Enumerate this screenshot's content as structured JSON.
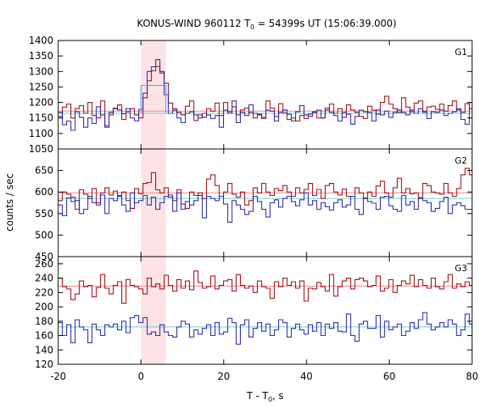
{
  "chart_data": {
    "type": "line",
    "title": "KONUS-WIND 960112 T",
    "title_sub": "0",
    "title_tail": " = 54399s UT (15:06:39.000)",
    "xlabel_main": "T - T",
    "xlabel_sub": "0",
    "xlabel_tail": ", s",
    "ylabel": "counts / sec",
    "xlim": [
      -20,
      80
    ],
    "bin_width": 1.024,
    "x_start": -20,
    "x_ticks": [
      -20,
      0,
      20,
      40,
      60,
      80
    ],
    "highlight_interval": [
      0,
      6
    ],
    "colors": {
      "red_series": "#a01015",
      "blue_series": "#2c2ca8",
      "background_red": "#e58a92",
      "background_blue": "#66d0d0",
      "highlight_fill": "#fde3e5",
      "source_box": "#5aa9e6"
    },
    "panels": [
      {
        "name": "G1",
        "ylim": [
          1050,
          1400
        ],
        "y_ticks": [
          1050,
          1100,
          1150,
          1200,
          1250,
          1300,
          1350,
          1400
        ],
        "background_red": 1172,
        "background_blue": 1165,
        "red_bins": [
          1155,
          1185,
          1195,
          1150,
          1180,
          1190,
          1165,
          1200,
          1158,
          1150,
          1205,
          1125,
          1160,
          1182,
          1192,
          1145,
          1170,
          1180,
          1160,
          1150,
          1215,
          1270,
          1302,
          1316,
          1295,
          1262,
          1198,
          1180,
          1168,
          1160,
          1188,
          1205,
          1142,
          1160,
          1152,
          1180,
          1172,
          1198,
          1158,
          1200,
          1170,
          1186,
          1160,
          1176,
          1182,
          1168,
          1150,
          1160,
          1148,
          1205,
          1182,
          1155,
          1196,
          1166,
          1145,
          1150,
          1140,
          1158,
          1148,
          1162,
          1170,
          1150,
          1150,
          1176,
          1195,
          1165,
          1180,
          1152,
          1192,
          1176,
          1168,
          1155,
          1148,
          1188,
          1175,
          1162,
          1200,
          1220,
          1195,
          1180,
          1168,
          1215,
          1185,
          1170,
          1198,
          1205,
          1172,
          1185,
          1188,
          1178,
          1195,
          1172,
          1190,
          1205,
          1176,
          1168,
          1196,
          1180
        ],
        "blue_bins": [
          1168,
          1128,
          1140,
          1110,
          1170,
          1152,
          1120,
          1150,
          1132,
          1186,
          1160,
          1120,
          1168,
          1180,
          1176,
          1164,
          1180,
          1150,
          1140,
          1178,
          1230,
          1300,
          1315,
          1338,
          1300,
          1225,
          1165,
          1175,
          1150,
          1135,
          1165,
          1170,
          1160,
          1150,
          1165,
          1160,
          1148,
          1158,
          1120,
          1175,
          1165,
          1205,
          1135,
          1168,
          1158,
          1192,
          1165,
          1162,
          1152,
          1175,
          1172,
          1140,
          1168,
          1176,
          1162,
          1140,
          1170,
          1190,
          1160,
          1155,
          1168,
          1175,
          1150,
          1182,
          1168,
          1158,
          1140,
          1168,
          1162,
          1130,
          1155,
          1175,
          1170,
          1168,
          1140,
          1176,
          1160,
          1172,
          1152,
          1168,
          1176,
          1168,
          1160,
          1176,
          1165,
          1180,
          1168,
          1148,
          1170,
          1168,
          1176,
          1158,
          1165,
          1170,
          1180,
          1145,
          1130,
          1200
        ],
        "source_box": {
          "x0": 0,
          "x1": 6,
          "level": 1255
        }
      },
      {
        "name": "G2",
        "ylim": [
          450,
          700
        ],
        "y_ticks": [
          450,
          500,
          550,
          600,
          650
        ],
        "background_red": 598,
        "background_blue": 585,
        "red_bins": [
          580,
          600,
          595,
          588,
          560,
          605,
          595,
          585,
          608,
          575,
          598,
          610,
          593,
          602,
          592,
          600,
          580,
          562,
          608,
          596,
          620,
          622,
          645,
          605,
          598,
          610,
          588,
          580,
          605,
          572,
          562,
          600,
          592,
          598,
          585,
          630,
          640,
          615,
          590,
          600,
          620,
          595,
          588,
          600,
          570,
          580,
          610,
          598,
          620,
          600,
          592,
          608,
          603,
          615,
          600,
          590,
          610,
          598,
          606,
          620,
          592,
          606,
          585,
          615,
          620,
          600,
          593,
          607,
          590,
          590,
          610,
          598,
          586,
          600,
          590,
          614,
          625,
          598,
          588,
          610,
          632,
          598,
          608,
          596,
          598,
          587,
          620,
          615,
          600,
          598,
          595,
          620,
          598,
          590,
          608,
          640,
          655,
          640
        ],
        "blue_bins": [
          570,
          545,
          586,
          578,
          580,
          550,
          560,
          590,
          575,
          570,
          593,
          550,
          585,
          580,
          590,
          570,
          555,
          598,
          575,
          580,
          592,
          570,
          588,
          560,
          575,
          590,
          593,
          555,
          598,
          560,
          578,
          570,
          580,
          592,
          540,
          590,
          585,
          580,
          590,
          572,
          530,
          580,
          570,
          560,
          548,
          555,
          590,
          578,
          560,
          542,
          575,
          582,
          565,
          585,
          590,
          578,
          568,
          582,
          598,
          570,
          580,
          560,
          575,
          566,
          558,
          575,
          582,
          565,
          570,
          590,
          560,
          548,
          585,
          578,
          574,
          560,
          588,
          590,
          568,
          560,
          555,
          592,
          570,
          578,
          560,
          585,
          580,
          575,
          555,
          562,
          578,
          588,
          550,
          570,
          575,
          568,
          560,
          560
        ]
      },
      {
        "name": "G3",
        "ylim": [
          120,
          270
        ],
        "y_ticks": [
          120,
          140,
          160,
          180,
          200,
          220,
          240,
          260
        ],
        "background_red": 229,
        "background_blue": 172,
        "red_bins": [
          240,
          228,
          225,
          210,
          218,
          236,
          228,
          230,
          214,
          227,
          245,
          226,
          218,
          230,
          235,
          205,
          238,
          230,
          228,
          225,
          218,
          240,
          228,
          232,
          225,
          244,
          230,
          222,
          238,
          226,
          236,
          224,
          250,
          234,
          226,
          228,
          243,
          225,
          230,
          236,
          238,
          222,
          245,
          230,
          226,
          229,
          220,
          236,
          228,
          226,
          212,
          235,
          228,
          240,
          230,
          235,
          226,
          236,
          208,
          226,
          225,
          234,
          228,
          222,
          245,
          215,
          228,
          236,
          240,
          225,
          238,
          240,
          236,
          228,
          230,
          243,
          222,
          226,
          238,
          220,
          230,
          236,
          232,
          244,
          228,
          238,
          230,
          226,
          240,
          228,
          225,
          235,
          245,
          226,
          232,
          228,
          235,
          230
        ],
        "blue_bins": [
          178,
          160,
          175,
          150,
          182,
          172,
          168,
          150,
          176,
          168,
          160,
          175,
          172,
          176,
          168,
          180,
          164,
          185,
          188,
          178,
          185,
          162,
          165,
          160,
          175,
          165,
          160,
          158,
          172,
          180,
          176,
          158,
          168,
          162,
          170,
          175,
          160,
          178,
          162,
          165,
          184,
          178,
          148,
          175,
          182,
          158,
          170,
          178,
          166,
          176,
          160,
          168,
          182,
          178,
          158,
          170,
          176,
          168,
          162,
          175,
          166,
          178,
          160,
          176,
          170,
          178,
          166,
          165,
          190,
          160,
          152,
          176,
          180,
          170,
          170,
          188,
          158,
          180,
          168,
          172,
          176,
          160,
          166,
          178,
          170,
          182,
          192,
          176,
          168,
          172,
          178,
          172,
          182,
          176,
          160,
          168,
          190,
          176
        ]
      }
    ]
  }
}
